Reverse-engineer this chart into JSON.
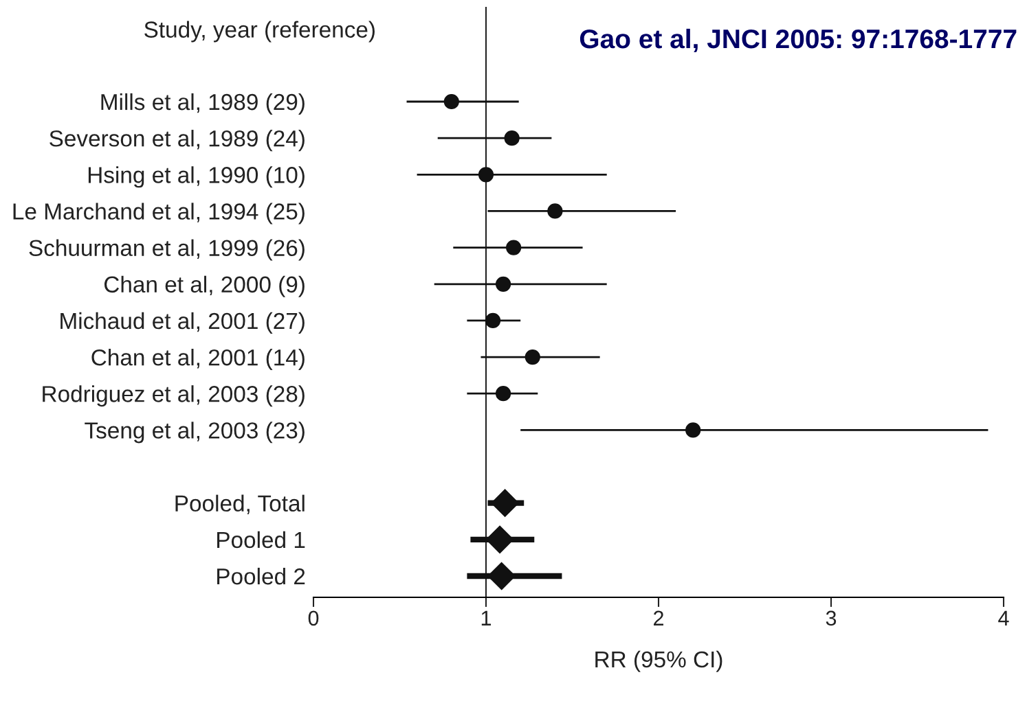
{
  "chart_data": {
    "type": "scatter",
    "orientation": "horizontal",
    "title": "Gao et al, JNCI 2005: 97:1768-1777",
    "annotations": [
      "Study, year (reference)"
    ],
    "categories": [
      "Mills et al, 1989 (29)",
      "Severson et al, 1989 (24)",
      "Hsing et al, 1990 (10)",
      "Le Marchand et al, 1994 (25)",
      "Schuurman et al, 1999 (26)",
      "Chan et al, 2000 (9)",
      "Michaud et al, 2001 (27)",
      "Chan et al, 2001 (14)",
      "Rodriguez et al, 2003 (28)",
      "Tseng et al, 2003 (23)",
      null,
      "Pooled, Total",
      "Pooled 1",
      "Pooled 2"
    ],
    "series": [
      {
        "color": "#111111",
        "marker": "circle",
        "values": [
          0.8,
          1.15,
          1.0,
          1.4,
          1.16,
          1.1,
          1.04,
          1.27,
          1.1,
          2.2,
          null,
          null,
          null,
          null
        ],
        "errors": [
          [
            0.54,
            1.19
          ],
          [
            0.72,
            1.38
          ],
          [
            0.6,
            1.7
          ],
          [
            1.01,
            2.1
          ],
          [
            0.81,
            1.56
          ],
          [
            0.7,
            1.7
          ],
          [
            0.89,
            1.2
          ],
          [
            0.97,
            1.66
          ],
          [
            0.89,
            1.3
          ],
          [
            1.2,
            3.91
          ],
          null,
          null,
          null,
          null
        ]
      },
      {
        "color": "#111111",
        "marker": "diamond",
        "values": [
          null,
          null,
          null,
          null,
          null,
          null,
          null,
          null,
          null,
          null,
          null,
          1.11,
          1.08,
          1.09
        ],
        "errors": [
          null,
          null,
          null,
          null,
          null,
          null,
          null,
          null,
          null,
          null,
          null,
          [
            1.01,
            1.22
          ],
          [
            0.91,
            1.28
          ],
          [
            0.89,
            1.44
          ]
        ]
      }
    ],
    "xlabel": "RR (95% CI)",
    "xlim": [
      0,
      4
    ],
    "xticks": [
      0,
      1,
      2,
      3,
      4
    ],
    "ref_lines": [
      {
        "axis": "x",
        "value": 1,
        "color": "#222222"
      }
    ],
    "grid": false,
    "legend": false
  }
}
